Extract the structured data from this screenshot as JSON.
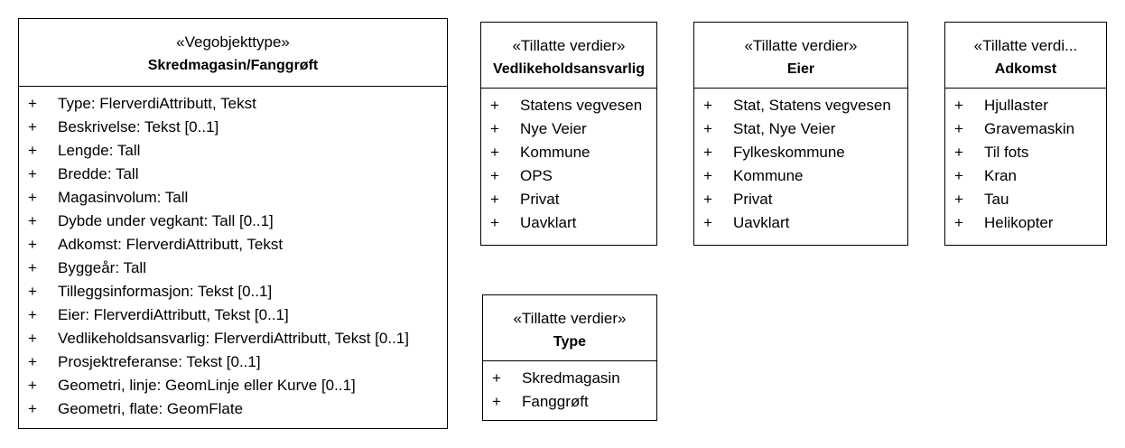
{
  "classes": {
    "main": {
      "stereotype": "«Vegobjekttype»",
      "name": "Skredmagasin/Fanggrøft",
      "attributes": [
        {
          "vis": "+",
          "text": "Type: FlerverdiAttributt, Tekst"
        },
        {
          "vis": "+",
          "text": "Beskrivelse: Tekst [0..1]"
        },
        {
          "vis": "+",
          "text": "Lengde: Tall"
        },
        {
          "vis": "+",
          "text": "Bredde: Tall"
        },
        {
          "vis": "+",
          "text": "Magasinvolum: Tall"
        },
        {
          "vis": "+",
          "text": "Dybde under vegkant: Tall [0..1]"
        },
        {
          "vis": "+",
          "text": "Adkomst: FlerverdiAttributt, Tekst"
        },
        {
          "vis": "+",
          "text": "Byggeår: Tall"
        },
        {
          "vis": "+",
          "text": "Tilleggsinformasjon: Tekst [0..1]"
        },
        {
          "vis": "+",
          "text": "Eier: FlerverdiAttributt, Tekst [0..1]"
        },
        {
          "vis": "+",
          "text": "Vedlikeholdsansvarlig: FlerverdiAttributt, Tekst [0..1]"
        },
        {
          "vis": "+",
          "text": "Prosjektreferanse: Tekst [0..1]"
        },
        {
          "vis": "+",
          "text": "Geometri, linje: GeomLinje eller Kurve [0..1]"
        },
        {
          "vis": "+",
          "text": "Geometri, flate: GeomFlate"
        }
      ]
    },
    "vedlikeholdsansvarlig": {
      "stereotype": "«Tillatte verdier»",
      "name": "Vedlikeholdsansvarlig",
      "attributes": [
        {
          "vis": "+",
          "text": "Statens vegvesen"
        },
        {
          "vis": "+",
          "text": "Nye Veier"
        },
        {
          "vis": "+",
          "text": "Kommune"
        },
        {
          "vis": "+",
          "text": "OPS"
        },
        {
          "vis": "+",
          "text": "Privat"
        },
        {
          "vis": "+",
          "text": "Uavklart"
        }
      ]
    },
    "eier": {
      "stereotype": "«Tillatte verdier»",
      "name": "Eier",
      "attributes": [
        {
          "vis": "+",
          "text": "Stat, Statens vegvesen"
        },
        {
          "vis": "+",
          "text": "Stat, Nye Veier"
        },
        {
          "vis": "+",
          "text": "Fylkeskommune"
        },
        {
          "vis": "+",
          "text": "Kommune"
        },
        {
          "vis": "+",
          "text": "Privat"
        },
        {
          "vis": "+",
          "text": "Uavklart"
        }
      ]
    },
    "adkomst": {
      "stereotype": "«Tillatte verdi...",
      "name": "Adkomst",
      "attributes": [
        {
          "vis": "+",
          "text": "Hjullaster"
        },
        {
          "vis": "+",
          "text": "Gravemaskin"
        },
        {
          "vis": "+",
          "text": "Til fots"
        },
        {
          "vis": "+",
          "text": "Kran"
        },
        {
          "vis": "+",
          "text": "Tau"
        },
        {
          "vis": "+",
          "text": "Helikopter"
        }
      ]
    },
    "type": {
      "stereotype": "«Tillatte verdier»",
      "name": "Type",
      "attributes": [
        {
          "vis": "+",
          "text": "Skredmagasin"
        },
        {
          "vis": "+",
          "text": "Fanggrøft"
        }
      ]
    }
  }
}
